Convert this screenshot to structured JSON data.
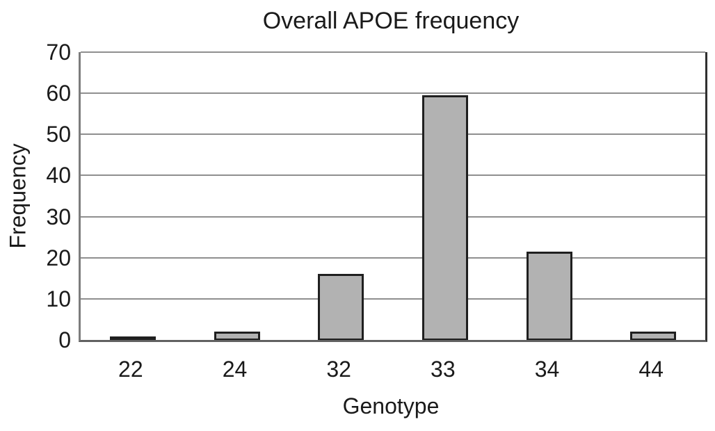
{
  "chart_data": {
    "type": "bar",
    "title": "Overall APOE frequency",
    "xlabel": "Genotype",
    "ylabel": "Frequency",
    "categories": [
      "22",
      "24",
      "32",
      "33",
      "34",
      "44"
    ],
    "values": [
      0.8,
      2,
      16,
      59.5,
      21.5,
      2
    ],
    "ylim": [
      0,
      70
    ],
    "yticks": [
      0,
      10,
      20,
      30,
      40,
      50,
      60,
      70
    ],
    "grid": "horizontal",
    "legend_position": "none",
    "colors": {
      "bar_fill": "#b2b2b2",
      "bar_border": "#1f1f1f",
      "gridline": "#8f8f8f",
      "axis_text": "#1a1a1a",
      "background": "#ffffff"
    }
  }
}
